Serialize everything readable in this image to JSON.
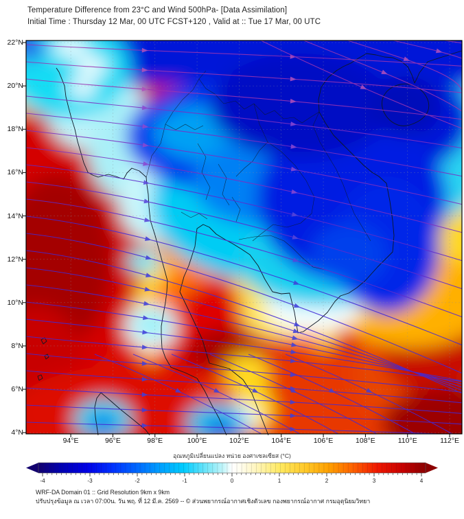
{
  "header": {
    "line1": "Temperature Difference from 23°C and Wind 500hPa- [Data Assimilation]",
    "line2": "Initial Time : Thursday 12 Mar, 00 UTC FCST+120 , Valid at ::  Tue 17 Mar, 00 UTC"
  },
  "map": {
    "lat_labels": [
      "22°N",
      "20°N",
      "18°N",
      "16°N",
      "14°N",
      "12°N",
      "10°N",
      "8°N",
      "6°N",
      "4°N"
    ],
    "lon_labels": [
      "94°E",
      "96°E",
      "98°E",
      "100°E",
      "102°E",
      "104°E",
      "106°E",
      "108°E",
      "110°E",
      "112°E"
    ],
    "stream_color_north": "#9a34b2",
    "stream_color_south": "#432ad6",
    "coast_color": "#0e1826",
    "grid_color": "#8a9096"
  },
  "colorbar": {
    "title": "อุณหภูมิเปลี่ยนแปลง หน่วย องศาเซลเซียส (°C)",
    "min": -4,
    "max": 4,
    "ticks": [
      "-4",
      "-3",
      "-2",
      "-1",
      "0",
      "1",
      "2",
      "3",
      "4"
    ],
    "gradient": [
      [
        "0",
        "#12006e"
      ],
      [
        "0.06",
        "#0000b4"
      ],
      [
        "0.125",
        "#0000e6"
      ],
      [
        "0.19",
        "#0030ff"
      ],
      [
        "0.25",
        "#0064ff"
      ],
      [
        "0.31",
        "#009cff"
      ],
      [
        "0.375",
        "#00ccff"
      ],
      [
        "0.44",
        "#7ce8f8"
      ],
      [
        "0.48",
        "#c8f6fa"
      ],
      [
        "0.5",
        "#ffffff"
      ],
      [
        "0.52",
        "#fffdf0"
      ],
      [
        "0.56",
        "#fff6c0"
      ],
      [
        "0.625",
        "#ffe960"
      ],
      [
        "0.69",
        "#ffc828"
      ],
      [
        "0.75",
        "#ffa000"
      ],
      [
        "0.81",
        "#ff6400"
      ],
      [
        "0.875",
        "#f01800"
      ],
      [
        "0.94",
        "#c80000"
      ],
      [
        "1",
        "#8c0000"
      ]
    ]
  },
  "footer": {
    "line1": "WRF-DA Domain 01 :: Grid Resolution 9km x 9km",
    "line2": "ปรับปรุงข้อมูล ณ เวลา 07:00น. วัน พฤ. ที่ 12 มี.ค. 2569 -- © ส่วนพยากรณ์อากาศเชิงตัวเลข กองพยากรณ์อากาศ กรมอุตุนิยมวิทยา"
  },
  "chart_data": {
    "type": "heatmap",
    "title": "Temperature Difference from 23°C and Wind 500hPa- [Data Assimilation]",
    "subtitle": "Initial Time : Thursday 12 Mar, 00 UTC FCST+120 , Valid at ::  Tue 17 Mar, 00 UTC",
    "colorbar_label": "อุณหภูมิเปลี่ยนแปลง หน่วย องศาเซลเซียส (°C)",
    "value_range": [
      -4,
      4
    ],
    "x_axis": {
      "ticks": [
        "94°E",
        "96°E",
        "98°E",
        "100°E",
        "102°E",
        "104°E",
        "106°E",
        "108°E",
        "110°E",
        "112°E"
      ]
    },
    "y_axis": {
      "ticks": [
        "22°N",
        "20°N",
        "18°N",
        "16°N",
        "14°N",
        "12°N",
        "10°N",
        "8°N",
        "6°N",
        "4°N"
      ]
    },
    "overlay": "500hPa wind streamlines with arrowheads",
    "legend_position": "bottom"
  }
}
